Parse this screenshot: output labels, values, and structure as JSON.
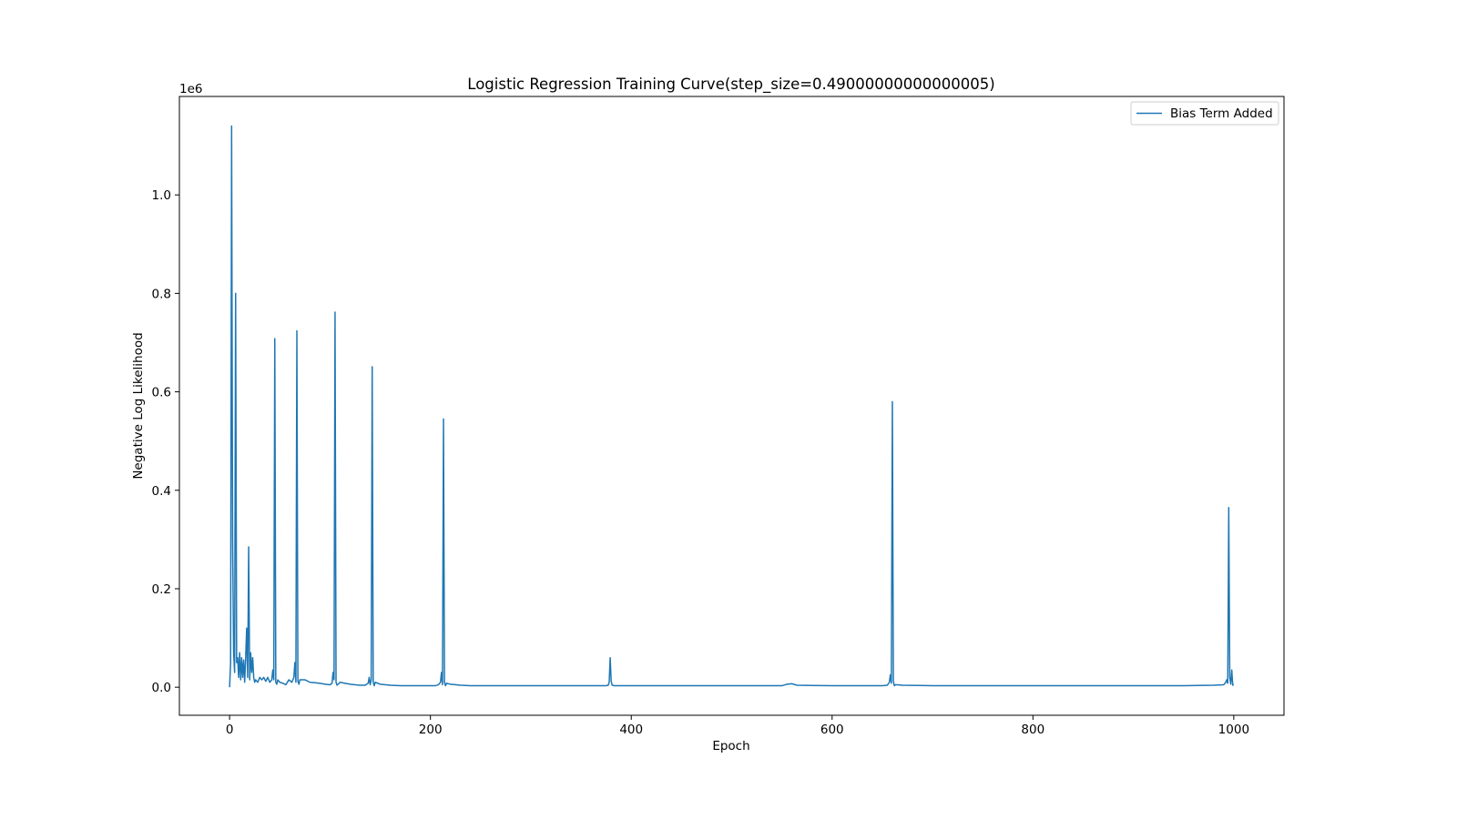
{
  "chart_data": {
    "type": "line",
    "title": "Logistic Regression Training Curve(step_size=0.49000000000000005)",
    "xlabel": "Epoch",
    "ylabel": "Negative Log Likelihood",
    "y_offset_label": "1e6",
    "xlim": [
      -50,
      1050
    ],
    "ylim": [
      -0.057,
      1.2
    ],
    "x_ticks": [
      0,
      200,
      400,
      600,
      800,
      1000
    ],
    "x_tick_labels": [
      "0",
      "200",
      "400",
      "600",
      "800",
      "1000"
    ],
    "y_ticks": [
      0.0,
      0.2,
      0.4,
      0.6,
      0.8,
      1.0
    ],
    "y_tick_labels": [
      "0.0",
      "0.2",
      "0.4",
      "0.6",
      "0.8",
      "1.0"
    ],
    "grid": false,
    "legend_position": "top-right",
    "color": "#1f77b4",
    "series": [
      {
        "name": "Bias Term Added",
        "x": [
          0,
          1,
          2,
          3,
          4,
          5,
          6,
          7,
          8,
          9,
          10,
          11,
          12,
          13,
          14,
          15,
          16,
          17,
          18,
          19,
          20,
          21,
          22,
          23,
          24,
          25,
          26,
          28,
          30,
          32,
          34,
          36,
          38,
          40,
          42,
          43,
          44,
          45,
          46,
          47,
          48,
          50,
          53,
          56,
          59,
          62,
          64,
          65,
          66,
          67,
          68,
          69,
          70,
          75,
          80,
          85,
          90,
          95,
          100,
          102,
          103,
          104,
          105,
          106,
          107,
          110,
          115,
          120,
          125,
          130,
          135,
          138,
          139,
          140,
          141,
          142,
          143,
          144,
          145,
          150,
          160,
          170,
          180,
          190,
          200,
          205,
          208,
          210,
          211,
          212,
          213,
          214,
          215,
          216,
          220,
          230,
          240,
          250,
          300,
          350,
          375,
          377,
          378,
          379,
          380,
          381,
          383,
          400,
          450,
          500,
          550,
          555,
          560,
          565,
          600,
          650,
          655,
          657,
          658,
          659,
          660,
          661,
          662,
          663,
          665,
          670,
          700,
          750,
          800,
          850,
          900,
          950,
          980,
          990,
          992,
          993,
          994,
          995,
          996,
          997,
          998,
          999,
          1000
        ],
        "values": [
          0.0,
          0.05,
          1.14,
          0.3,
          0.07,
          0.03,
          0.8,
          0.05,
          0.06,
          0.02,
          0.07,
          0.015,
          0.06,
          0.02,
          0.055,
          0.01,
          0.06,
          0.12,
          0.02,
          0.285,
          0.015,
          0.07,
          0.03,
          0.06,
          0.02,
          0.01,
          0.015,
          0.01,
          0.02,
          0.015,
          0.02,
          0.012,
          0.02,
          0.01,
          0.015,
          0.035,
          0.015,
          0.708,
          0.01,
          0.006,
          0.015,
          0.01,
          0.008,
          0.005,
          0.015,
          0.01,
          0.02,
          0.05,
          0.01,
          0.724,
          0.012,
          0.006,
          0.015,
          0.015,
          0.01,
          0.009,
          0.008,
          0.006,
          0.005,
          0.008,
          0.03,
          0.015,
          0.762,
          0.01,
          0.004,
          0.01,
          0.008,
          0.006,
          0.005,
          0.004,
          0.004,
          0.008,
          0.02,
          0.005,
          0.015,
          0.651,
          0.01,
          0.003,
          0.01,
          0.006,
          0.004,
          0.003,
          0.003,
          0.003,
          0.003,
          0.003,
          0.005,
          0.01,
          0.03,
          0.005,
          0.545,
          0.01,
          0.003,
          0.008,
          0.006,
          0.004,
          0.003,
          0.003,
          0.003,
          0.003,
          0.003,
          0.004,
          0.01,
          0.06,
          0.012,
          0.004,
          0.003,
          0.003,
          0.003,
          0.003,
          0.003,
          0.006,
          0.007,
          0.004,
          0.003,
          0.003,
          0.004,
          0.01,
          0.025,
          0.008,
          0.58,
          0.012,
          0.003,
          0.005,
          0.005,
          0.004,
          0.003,
          0.003,
          0.003,
          0.003,
          0.003,
          0.003,
          0.004,
          0.005,
          0.01,
          0.015,
          0.008,
          0.365,
          0.02,
          0.006,
          0.035,
          0.004,
          0.005
        ]
      }
    ]
  }
}
